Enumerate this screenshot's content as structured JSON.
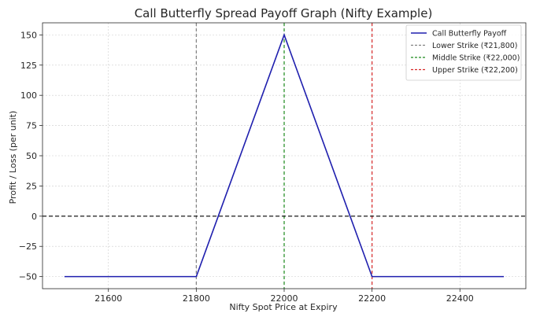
{
  "chart_data": {
    "type": "line",
    "title": "Call Butterfly Spread Payoff Graph (Nifty Example)",
    "xlabel": "Nifty Spot Price at Expiry",
    "ylabel": "Profit / Loss (per unit)",
    "xlim": [
      21450,
      22550
    ],
    "ylim": [
      -60,
      160
    ],
    "x_ticks": [
      21600,
      21800,
      22000,
      22200,
      22400
    ],
    "y_ticks": [
      -50,
      -25,
      0,
      25,
      50,
      75,
      100,
      125,
      150
    ],
    "x_tick_labels": [
      "21600",
      "21800",
      "22000",
      "22200",
      "22400"
    ],
    "y_tick_labels": [
      "−50",
      "−25",
      "0",
      "25",
      "50",
      "75",
      "100",
      "125",
      "150"
    ],
    "grid": true,
    "legend_position": "top-right",
    "series": [
      {
        "name": "Call Butterfly Payoff",
        "color": "#1f1fae",
        "x": [
          21500,
          21800,
          22000,
          22200,
          22500
        ],
        "y": [
          -50,
          -50,
          150,
          -50,
          -50
        ]
      }
    ],
    "reference_lines": [
      {
        "name": "Lower Strike (₹21,800)",
        "orientation": "vertical",
        "value": 21800,
        "color": "#808080",
        "style": "dashed"
      },
      {
        "name": "Middle Strike (₹22,000)",
        "orientation": "vertical",
        "value": 22000,
        "color": "#1a8a1a",
        "style": "dashed"
      },
      {
        "name": "Upper Strike (₹22,200)",
        "orientation": "vertical",
        "value": 22200,
        "color": "#d62728",
        "style": "dashed"
      },
      {
        "name": "",
        "orientation": "horizontal",
        "value": 0,
        "color": "#000000",
        "style": "dashed"
      }
    ]
  }
}
